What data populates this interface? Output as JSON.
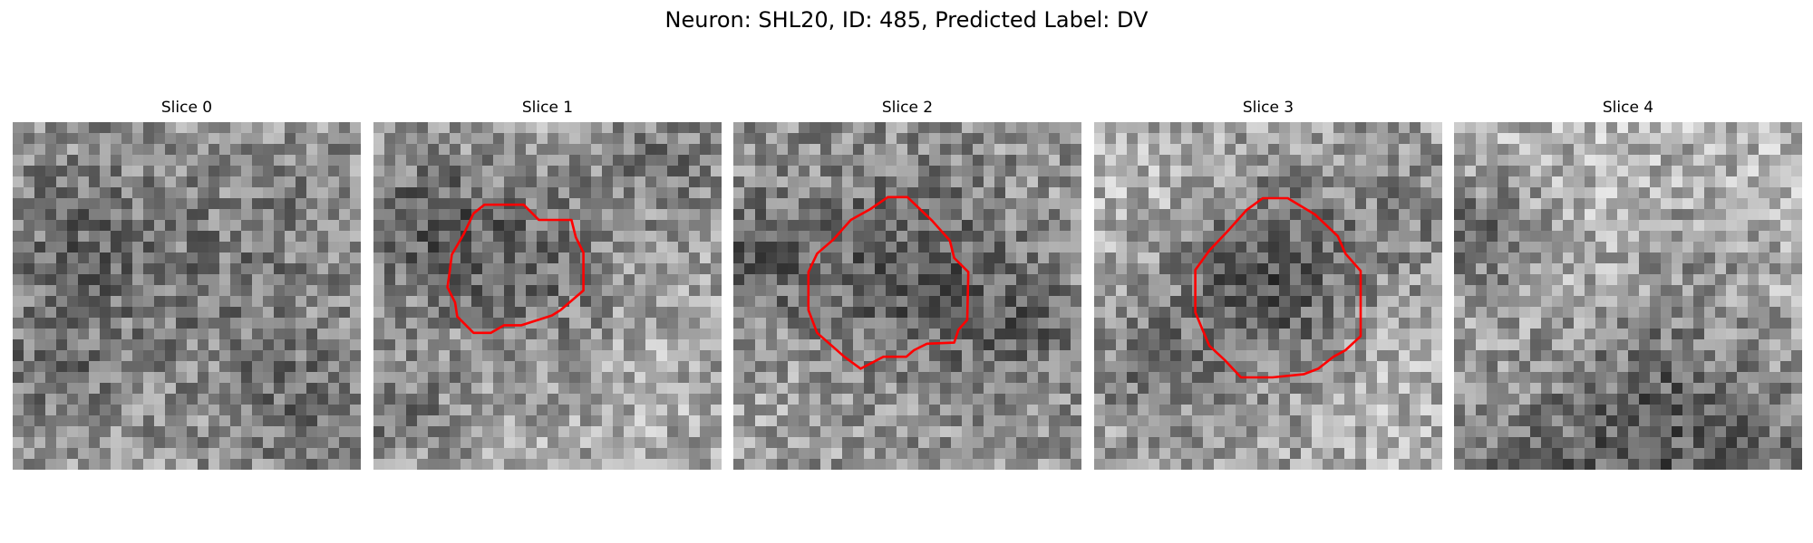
{
  "figure": {
    "title": "Neuron: SHL20, ID: 485, Predicted Label: DV"
  },
  "panels": [
    {
      "title": "Slice 0",
      "has_roi_contour": false
    },
    {
      "title": "Slice 1",
      "has_roi_contour": true
    },
    {
      "title": "Slice 2",
      "has_roi_contour": true
    },
    {
      "title": "Slice 3",
      "has_roi_contour": true
    },
    {
      "title": "Slice 4",
      "has_roi_contour": false
    }
  ],
  "colors": {
    "roi_contour": "#ff0000",
    "background": "#ffffff"
  }
}
